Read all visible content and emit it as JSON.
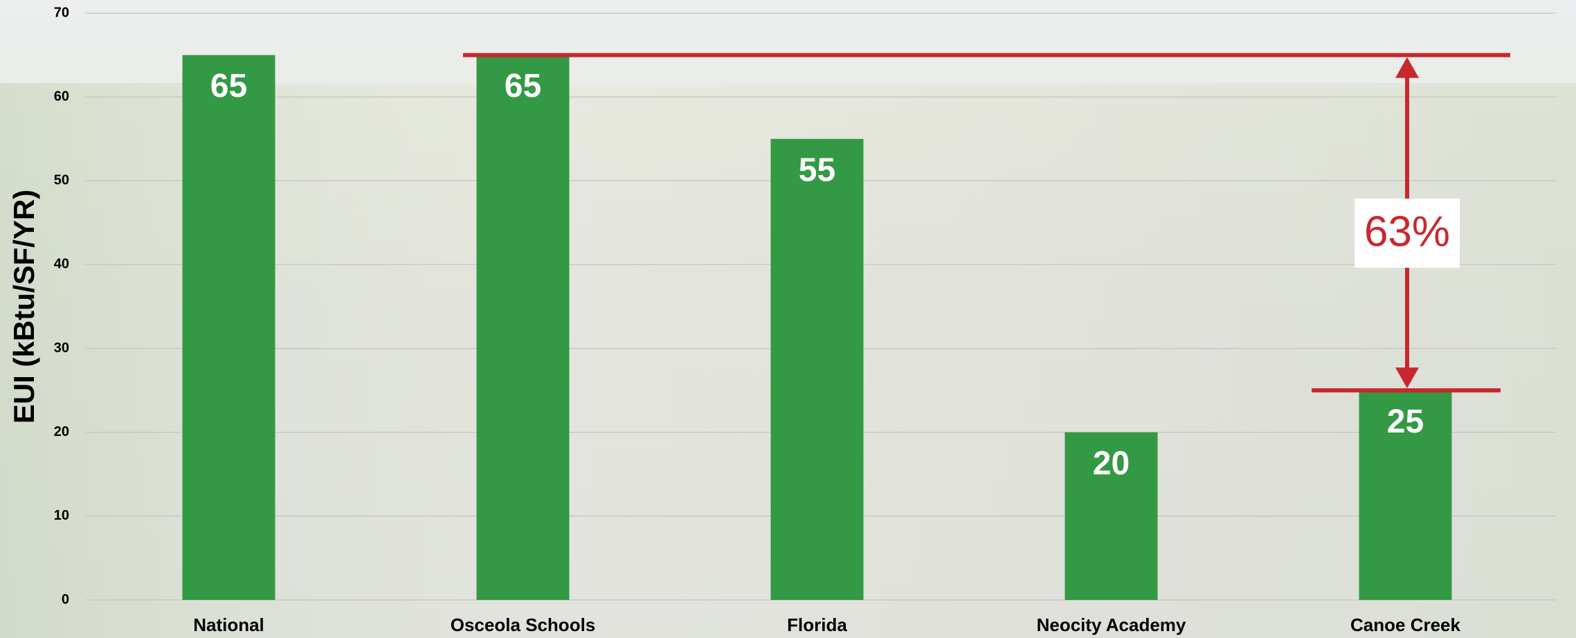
{
  "chart_data": {
    "type": "bar",
    "y_axis_label": "EUI  (kBtu/SF/YR)",
    "categories": [
      "National",
      "Osceola Schools",
      "Florida",
      "Neocity Academy",
      "Canoe Creek"
    ],
    "values": [
      65,
      65,
      55,
      20,
      25
    ],
    "color": "#339944",
    "ylim": [
      0,
      70
    ],
    "yticks": [
      0,
      10,
      20,
      30,
      40,
      50,
      60,
      70
    ],
    "grid": true,
    "annotation": "63%"
  }
}
